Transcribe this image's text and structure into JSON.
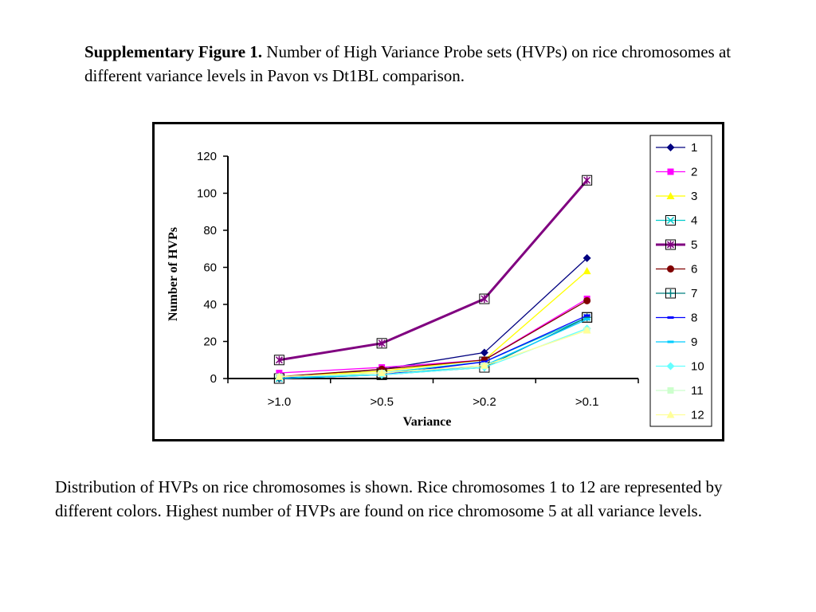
{
  "caption": {
    "heading": "Supplementary Figure 1.",
    "text": " Number of High Variance Probe sets (HVPs) on rice chromosomes at different variance levels in Pavon vs Dt1BL comparison."
  },
  "description": "Distribution of HVPs on rice chromosomes is shown. Rice chromosomes 1 to 12 are represented by different colors. Highest number of HVPs are found on rice chromosome 5 at all variance levels.",
  "chart_data": {
    "type": "line",
    "categories": [
      ">1.0",
      ">0.5",
      ">0.2",
      ">0.1"
    ],
    "xlabel": "Variance",
    "ylabel": "Number of HVPs",
    "ylim": [
      0,
      120
    ],
    "yticks": [
      0,
      20,
      40,
      60,
      80,
      100,
      120
    ],
    "grid": false,
    "legend_position": "right",
    "series": [
      {
        "name": "1",
        "color": "#000080",
        "marker": "diamond",
        "values": [
          0,
          5,
          14,
          65
        ]
      },
      {
        "name": "2",
        "color": "#ff00ff",
        "marker": "square",
        "values": [
          3,
          6,
          10,
          43
        ]
      },
      {
        "name": "3",
        "color": "#ffff00",
        "marker": "triangle",
        "values": [
          1,
          4,
          10,
          58
        ]
      },
      {
        "name": "4",
        "color": "#00cccc",
        "marker": "x-box",
        "values": [
          0,
          3,
          9,
          33
        ]
      },
      {
        "name": "5",
        "color": "#800080",
        "marker": "asterisk-box",
        "values": [
          10,
          19,
          43,
          107
        ]
      },
      {
        "name": "6",
        "color": "#800000",
        "marker": "circle",
        "values": [
          1,
          5,
          10,
          42
        ]
      },
      {
        "name": "7",
        "color": "#008080",
        "marker": "plus-box",
        "values": [
          0,
          2,
          6,
          33
        ]
      },
      {
        "name": "8",
        "color": "#0000ff",
        "marker": "dash",
        "values": [
          0,
          2,
          9,
          34
        ]
      },
      {
        "name": "9",
        "color": "#00ccff",
        "marker": "dash",
        "values": [
          0,
          2,
          7,
          32
        ]
      },
      {
        "name": "10",
        "color": "#66ffff",
        "marker": "diamond",
        "values": [
          1,
          2,
          6,
          27
        ]
      },
      {
        "name": "11",
        "color": "#ccffcc",
        "marker": "square",
        "values": [
          1,
          3,
          7,
          26
        ]
      },
      {
        "name": "12",
        "color": "#ffff99",
        "marker": "triangle",
        "values": [
          1,
          3,
          7,
          26
        ]
      }
    ]
  }
}
